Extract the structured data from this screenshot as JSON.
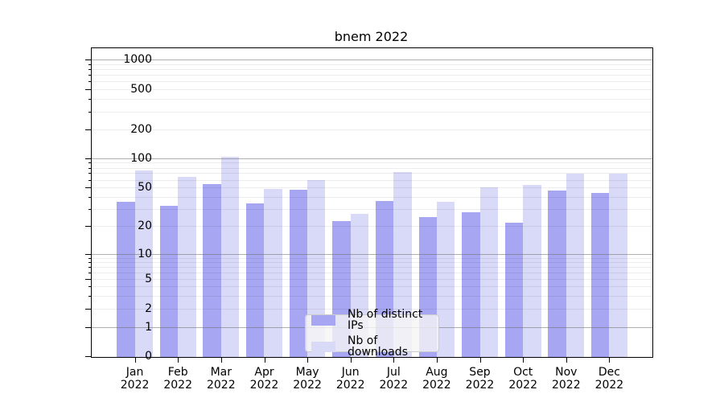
{
  "chart_data": {
    "type": "bar",
    "title": "bnem 2022",
    "categories": [
      "Jan 2022",
      "Feb 2022",
      "Mar 2022",
      "Apr 2022",
      "May 2022",
      "Jun 2022",
      "Jul 2022",
      "Aug 2022",
      "Sep 2022",
      "Oct 2022",
      "Nov 2022",
      "Dec 2022"
    ],
    "series": [
      {
        "name": "Nb of distinct IPs",
        "color": "#a6a6f2",
        "values": [
          36,
          33,
          55,
          35,
          48,
          23,
          37,
          25,
          28,
          22,
          47,
          45
        ]
      },
      {
        "name": "Nb of downloads",
        "color": "#d9d9f8",
        "values": [
          76,
          65,
          105,
          49,
          61,
          27,
          73,
          36,
          51,
          54,
          71,
          70
        ]
      }
    ],
    "yscale": "symlog",
    "y_ticks": [
      0,
      1,
      2,
      5,
      10,
      20,
      50,
      100,
      200,
      500,
      1000
    ],
    "ylim": [
      0,
      1150
    ],
    "xlabel": "",
    "ylabel": "",
    "grid": "horizontal",
    "legend_position": "lower-center"
  },
  "colors": {
    "major_grid": "#b0b0b0",
    "minor_grid": "#ececec",
    "axis": "#000000",
    "legend_background": "#f5f5f5",
    "legend_border": "#cccccc",
    "background": "#ffffff"
  }
}
